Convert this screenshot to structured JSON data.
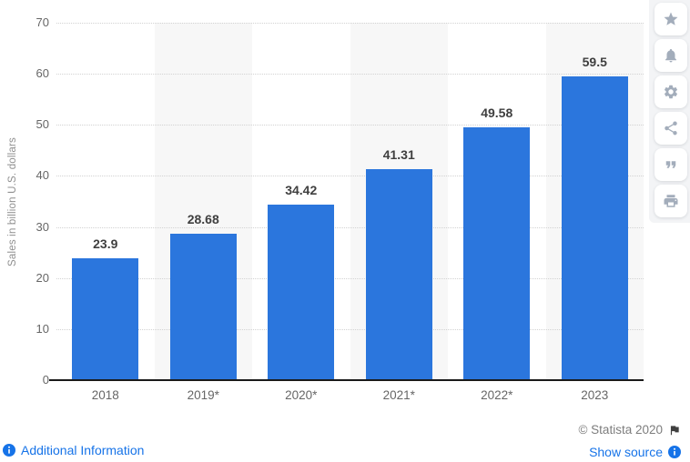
{
  "chart_data": {
    "type": "bar",
    "title": "",
    "categories": [
      "2018",
      "2019*",
      "2020*",
      "2021*",
      "2022*",
      "2023"
    ],
    "values": [
      23.9,
      28.68,
      34.42,
      41.31,
      49.58,
      59.5
    ],
    "value_labels": [
      "23.9",
      "28.68",
      "34.42",
      "41.31",
      "49.58",
      "59.5"
    ],
    "xlabel": "",
    "ylabel": "Sales in billion U.S. dollars",
    "ylim": [
      0,
      70
    ],
    "yticks": [
      0,
      10,
      20,
      30,
      40,
      50,
      60,
      70
    ],
    "grid": "horizontal-dotted",
    "legend": "none",
    "bar_color": "#2b76dd",
    "alt_column_stripe_color": "#f7f7f7",
    "axis_line_color": "#1a1a1a"
  },
  "sidebar": {
    "icons": [
      "star",
      "bell",
      "gear",
      "share",
      "quote",
      "print"
    ]
  },
  "footer": {
    "additional_information_label": "Additional Information",
    "copyright": "© Statista 2020",
    "show_source_label": "Show source"
  }
}
